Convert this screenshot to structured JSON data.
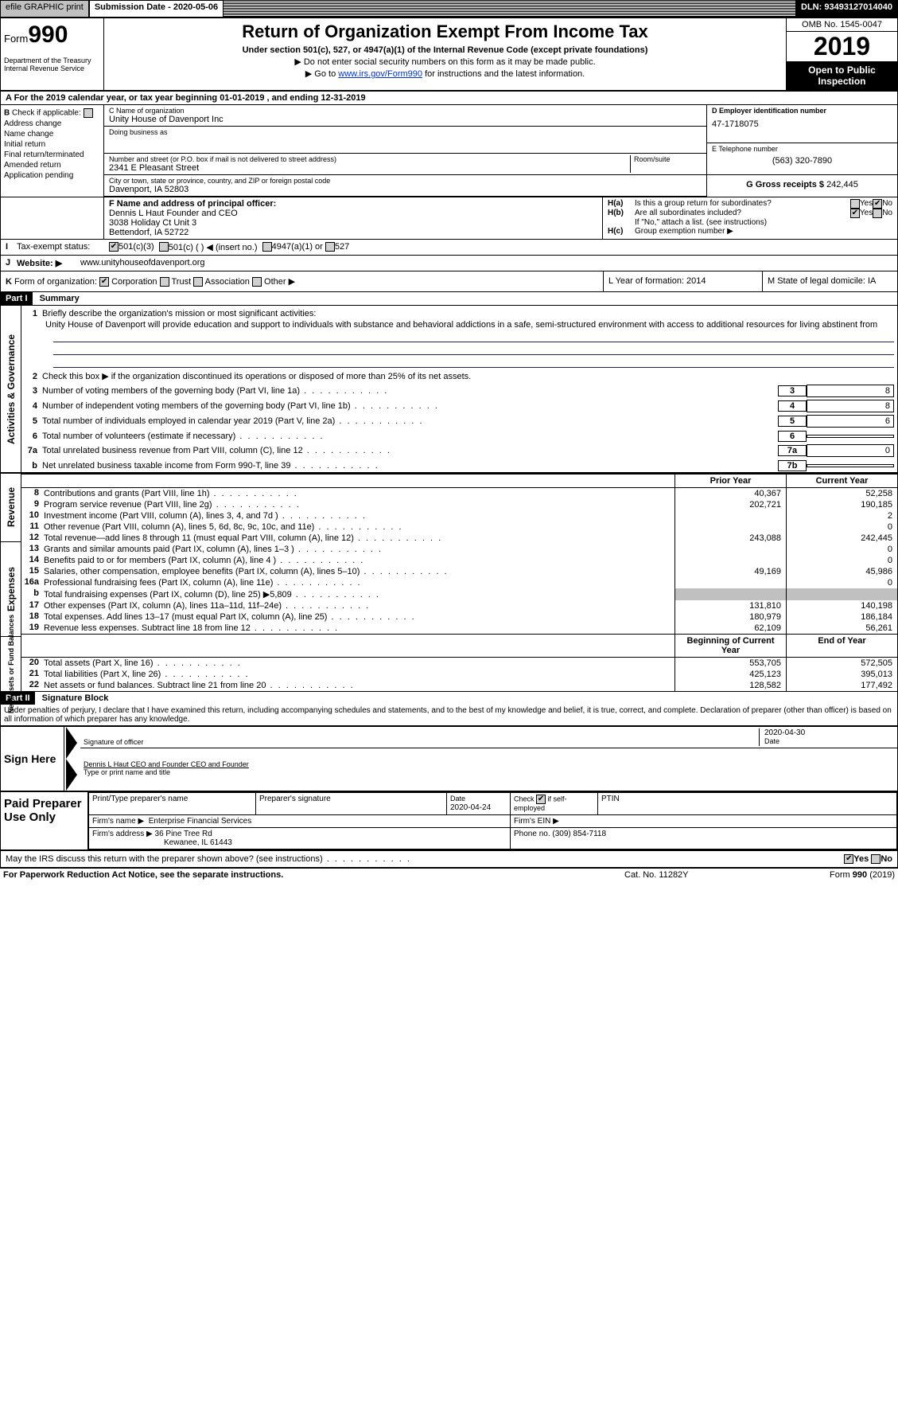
{
  "topbar": {
    "efile": "efile GRAPHIC print",
    "subm_label": "Submission Date - 2020-05-06",
    "dln": "DLN: 93493127014040"
  },
  "header": {
    "form_prefix": "Form",
    "form_num": "990",
    "title": "Return of Organization Exempt From Income Tax",
    "sub": "Under section 501(c), 527, or 4947(a)(1) of the Internal Revenue Code (except private foundations)",
    "note1": "▶ Do not enter social security numbers on this form as it may be made public.",
    "note2_pre": "▶ Go to ",
    "note2_link": "www.irs.gov/Form990",
    "note2_post": " for instructions and the latest information.",
    "omb": "OMB No. 1545-0047",
    "year": "2019",
    "open": "Open to Public Inspection",
    "dept": "Department of the Treasury",
    "irs": "Internal Revenue Service"
  },
  "period": {
    "text_a": "A  For the 2019 calendar year, or tax year beginning 01-01-2019",
    "text_mid": ", and ending 12-31-2019"
  },
  "colB": {
    "label": "B",
    "check": "Check if applicable:",
    "opts": [
      "Address change",
      "Name change",
      "Initial return",
      "Final return/terminated",
      "Amended return",
      "Application pending"
    ]
  },
  "colC": {
    "c_label": "C Name of organization",
    "name": "Unity House of Davenport Inc",
    "dba_label": "Doing business as",
    "dba": "",
    "street_label": "Number and street (or P.O. box if mail is not delivered to street address)",
    "room_label": "Room/suite",
    "street": "2341 E Pleasant Street",
    "city_label": "City or town, state or province, country, and ZIP or foreign postal code",
    "city": "Davenport, IA  52803"
  },
  "colDE": {
    "d_label": "D Employer identification number",
    "ein": "47-1718075",
    "e_label": "E Telephone number",
    "phone": "(563) 320-7890",
    "g_label": "G Gross receipts $",
    "gross": "242,445"
  },
  "f": {
    "label": "F  Name and address of principal officer:",
    "line1": "Dennis L Haut Founder and CEO",
    "line2": "3038 Holiday Ct Unit 3",
    "line3": "Bettendorf, IA  52722"
  },
  "h": {
    "ha_label": "H(a)",
    "ha_text": "Is this a group return for subordinates?",
    "ha_yes": "Yes",
    "ha_no": "No",
    "hb_label": "H(b)",
    "hb_text": "Are all subordinates included?",
    "hb_note": "If \"No,\" attach a list. (see instructions)",
    "hc_label": "H(c)",
    "hc_text": "Group exemption number ▶"
  },
  "i": {
    "label": "I",
    "text": "Tax-exempt status:",
    "o1": "501(c)(3)",
    "o2": "501(c) (  ) ◀ (insert no.)",
    "o3": "4947(a)(1) or",
    "o4": "527"
  },
  "j": {
    "label": "J",
    "text": "Website: ▶",
    "url": "www.unityhouseofdavenport.org"
  },
  "k": {
    "label": "K",
    "text": "Form of organization:",
    "o1": "Corporation",
    "o2": "Trust",
    "o3": "Association",
    "o4": "Other ▶"
  },
  "lm": {
    "l": "L Year of formation: 2014",
    "m": "M State of legal domicile: IA"
  },
  "partI": {
    "part": "Part I",
    "title": "Summary"
  },
  "summary": {
    "q1": "Briefly describe the organization's mission or most significant activities:",
    "mission": "Unity House of Davenport will provide education and support to individuals with substance and behavioral addictions in a safe, semi-structured environment with access to additional resources for living abstinent from",
    "q2": "Check this box ▶       if the organization discontinued its operations or disposed of more than 25% of its net assets.",
    "q3": "Number of voting members of the governing body (Part VI, line 1a)",
    "q4": "Number of independent voting members of the governing body (Part VI, line 1b)",
    "q5": "Total number of individuals employed in calendar year 2019 (Part V, line 2a)",
    "q6": "Total number of volunteers (estimate if necessary)",
    "q7a": "Total unrelated business revenue from Part VIII, column (C), line 12",
    "q7b": "Net unrelated business taxable income from Form 990-T, line 39",
    "v3": "8",
    "v4": "8",
    "v5": "6",
    "v6": "",
    "v7a": "0",
    "v7b": ""
  },
  "fin": {
    "prior": "Prior Year",
    "current": "Current Year",
    "boy": "Beginning of Current Year",
    "eoy": "End of Year",
    "rows": [
      {
        "sec": "rev",
        "n": "8",
        "q": "Contributions and grants (Part VIII, line 1h)",
        "p": "40,367",
        "c": "52,258"
      },
      {
        "sec": "rev",
        "n": "9",
        "q": "Program service revenue (Part VIII, line 2g)",
        "p": "202,721",
        "c": "190,185"
      },
      {
        "sec": "rev",
        "n": "10",
        "q": "Investment income (Part VIII, column (A), lines 3, 4, and 7d )",
        "p": "",
        "c": "2"
      },
      {
        "sec": "rev",
        "n": "11",
        "q": "Other revenue (Part VIII, column (A), lines 5, 6d, 8c, 9c, 10c, and 11e)",
        "p": "",
        "c": "0"
      },
      {
        "sec": "rev",
        "n": "12",
        "q": "Total revenue—add lines 8 through 11 (must equal Part VIII, column (A), line 12)",
        "p": "243,088",
        "c": "242,445"
      },
      {
        "sec": "exp",
        "n": "13",
        "q": "Grants and similar amounts paid (Part IX, column (A), lines 1–3 )",
        "p": "",
        "c": "0"
      },
      {
        "sec": "exp",
        "n": "14",
        "q": "Benefits paid to or for members (Part IX, column (A), line 4 )",
        "p": "",
        "c": "0"
      },
      {
        "sec": "exp",
        "n": "15",
        "q": "Salaries, other compensation, employee benefits (Part IX, column (A), lines 5–10)",
        "p": "49,169",
        "c": "45,986"
      },
      {
        "sec": "exp",
        "n": "16a",
        "q": "Professional fundraising fees (Part IX, column (A), line 11e)",
        "p": "",
        "c": "0"
      },
      {
        "sec": "exp",
        "n": "b",
        "q": "Total fundraising expenses (Part IX, column (D), line 25) ▶5,809",
        "p": "GREY",
        "c": "GREY"
      },
      {
        "sec": "exp",
        "n": "17",
        "q": "Other expenses (Part IX, column (A), lines 11a–11d, 11f–24e)",
        "p": "131,810",
        "c": "140,198"
      },
      {
        "sec": "exp",
        "n": "18",
        "q": "Total expenses. Add lines 13–17 (must equal Part IX, column (A), line 25)",
        "p": "180,979",
        "c": "186,184"
      },
      {
        "sec": "exp",
        "n": "19",
        "q": "Revenue less expenses. Subtract line 18 from line 12",
        "p": "62,109",
        "c": "56,261"
      },
      {
        "sec": "net",
        "n": "20",
        "q": "Total assets (Part X, line 16)",
        "p": "553,705",
        "c": "572,505"
      },
      {
        "sec": "net",
        "n": "21",
        "q": "Total liabilities (Part X, line 26)",
        "p": "425,123",
        "c": "395,013"
      },
      {
        "sec": "net",
        "n": "22",
        "q": "Net assets or fund balances. Subtract line 21 from line 20",
        "p": "128,582",
        "c": "177,492"
      }
    ]
  },
  "sidelabels": {
    "gov": "Activities & Governance",
    "rev": "Revenue",
    "exp": "Expenses",
    "net": "Net Assets or Fund Balances"
  },
  "partII": {
    "part": "Part II",
    "title": "Signature Block"
  },
  "sig": {
    "decl": "Under penalties of perjury, I declare that I have examined this return, including accompanying schedules and statements, and to the best of my knowledge and belief, it is true, correct, and complete. Declaration of preparer (other than officer) is based on all information of which preparer has any knowledge.",
    "signhere": "Sign Here",
    "sigofficer": "Signature of officer",
    "date": "2020-04-30",
    "datelbl": "Date",
    "name": "Dennis L Haut CEO and Founder  CEO and Founder",
    "namelbl": "Type or print name and title"
  },
  "paid": {
    "label": "Paid Preparer Use Only",
    "h1": "Print/Type preparer's name",
    "h2": "Preparer's signature",
    "h3": "Date",
    "h3v": "2020-04-24",
    "h4": "Check        if self-employed",
    "h5": "PTIN",
    "firm_label": "Firm's name  ▶",
    "firm": "Enterprise Financial Services",
    "firmein": "Firm's EIN ▶",
    "addr_label": "Firm's address ▶",
    "addr1": "36 Pine Tree Rd",
    "addr2": "Kewanee, IL  61443",
    "phone_label": "Phone no.",
    "phone": "(309) 854-7118"
  },
  "discuss": {
    "q": "May the IRS discuss this return with the preparer shown above? (see instructions)",
    "yes": "Yes",
    "no": "No"
  },
  "footer": {
    "l": "For Paperwork Reduction Act Notice, see the separate instructions.",
    "m": "Cat. No. 11282Y",
    "r": "Form 990 (2019)"
  }
}
